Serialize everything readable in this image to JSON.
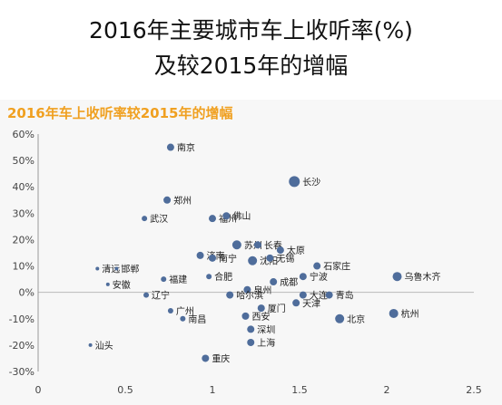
{
  "header": {
    "line1": "2016年主要城市车上收听率(%)",
    "line2": "及较2015年的增幅"
  },
  "chart_data": {
    "type": "scatter",
    "title": "2016年车上收听率较2015年的增幅",
    "xlabel": "",
    "ylabel": "",
    "xlim": [
      0,
      2.5
    ],
    "ylim": [
      -30,
      60
    ],
    "x_ticks": [
      "0",
      "0.5",
      "1",
      "1.5",
      "2",
      "2.5"
    ],
    "y_ticks": [
      "60%",
      "50%",
      "40%",
      "30%",
      "20%",
      "10%",
      "0%",
      "-10%",
      "-20%",
      "-30%"
    ],
    "grid": false,
    "legend": "none",
    "point_color": "#4f6d9b",
    "points": [
      {
        "name": "南京",
        "x": 0.76,
        "y": 55,
        "size": 4
      },
      {
        "name": "长沙",
        "x": 1.47,
        "y": 42,
        "size": 6
      },
      {
        "name": "郑州",
        "x": 0.74,
        "y": 35,
        "size": 4
      },
      {
        "name": "武汉",
        "x": 0.61,
        "y": 28,
        "size": 3
      },
      {
        "name": "福州",
        "x": 1.0,
        "y": 28,
        "size": 4
      },
      {
        "name": "佛山",
        "x": 1.08,
        "y": 29,
        "size": 4
      },
      {
        "name": "苏州",
        "x": 1.14,
        "y": 18,
        "size": 5
      },
      {
        "name": "长春",
        "x": 1.26,
        "y": 18,
        "size": 4
      },
      {
        "name": "太原",
        "x": 1.39,
        "y": 16,
        "size": 4
      },
      {
        "name": "济南",
        "x": 0.93,
        "y": 14,
        "size": 4
      },
      {
        "name": "南宁",
        "x": 1.0,
        "y": 13,
        "size": 4
      },
      {
        "name": "沈阳",
        "x": 1.23,
        "y": 12,
        "size": 5
      },
      {
        "name": "无锡",
        "x": 1.33,
        "y": 13,
        "size": 4
      },
      {
        "name": "石家庄",
        "x": 1.6,
        "y": 10,
        "size": 4
      },
      {
        "name": "清远",
        "x": 0.34,
        "y": 9,
        "size": 2
      },
      {
        "name": "邯郸",
        "x": 0.45,
        "y": 9,
        "size": 2
      },
      {
        "name": "福建",
        "x": 0.72,
        "y": 5,
        "size": 3
      },
      {
        "name": "合肥",
        "x": 0.98,
        "y": 6,
        "size": 3
      },
      {
        "name": "成都",
        "x": 1.35,
        "y": 4,
        "size": 4
      },
      {
        "name": "宁波",
        "x": 1.52,
        "y": 6,
        "size": 4
      },
      {
        "name": "乌鲁木齐",
        "x": 2.06,
        "y": 6,
        "size": 5
      },
      {
        "name": "安徽",
        "x": 0.4,
        "y": 3,
        "size": 2
      },
      {
        "name": "泉州",
        "x": 1.2,
        "y": 1,
        "size": 4
      },
      {
        "name": "辽宁",
        "x": 0.62,
        "y": -1,
        "size": 3
      },
      {
        "name": "哈尔滨",
        "x": 1.1,
        "y": -1,
        "size": 4
      },
      {
        "name": "大连",
        "x": 1.52,
        "y": -1,
        "size": 4
      },
      {
        "name": "青岛",
        "x": 1.67,
        "y": -1,
        "size": 4
      },
      {
        "name": "天津",
        "x": 1.48,
        "y": -4,
        "size": 4
      },
      {
        "name": "广州",
        "x": 0.76,
        "y": -7,
        "size": 3
      },
      {
        "name": "厦门",
        "x": 1.28,
        "y": -6,
        "size": 4
      },
      {
        "name": "南昌",
        "x": 0.83,
        "y": -10,
        "size": 3
      },
      {
        "name": "西安",
        "x": 1.19,
        "y": -9,
        "size": 4
      },
      {
        "name": "北京",
        "x": 1.73,
        "y": -10,
        "size": 5
      },
      {
        "name": "杭州",
        "x": 2.04,
        "y": -8,
        "size": 5
      },
      {
        "name": "深圳",
        "x": 1.22,
        "y": -14,
        "size": 4
      },
      {
        "name": "汕头",
        "x": 0.3,
        "y": -20,
        "size": 2
      },
      {
        "name": "上海",
        "x": 1.22,
        "y": -19,
        "size": 4
      },
      {
        "name": "重庆",
        "x": 0.96,
        "y": -25,
        "size": 4
      }
    ]
  }
}
